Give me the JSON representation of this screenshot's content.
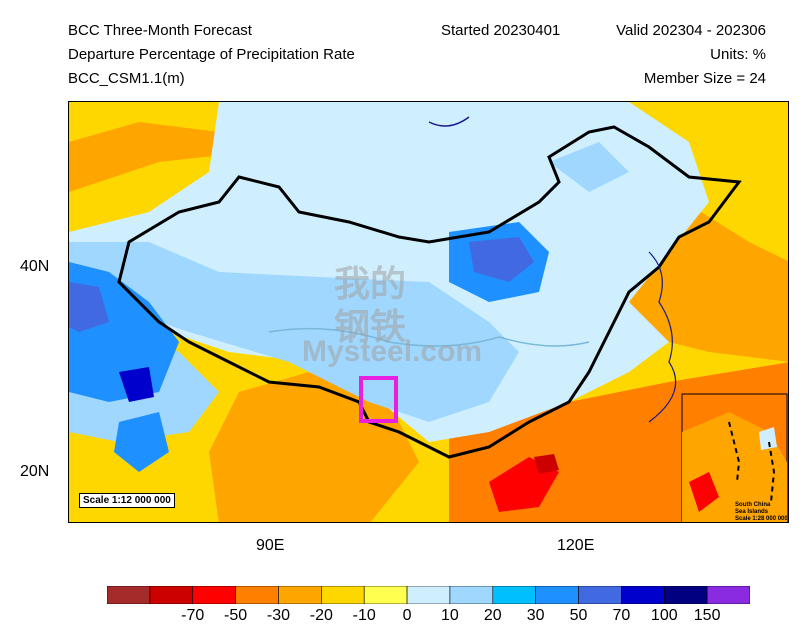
{
  "header": {
    "title": "BCC Three-Month Forecast",
    "subtitle": "Departure Percentage of Precipitation Rate",
    "model": "BCC_CSM1.1(m)",
    "started": "Started 20230401",
    "valid": "Valid 202304 - 202306",
    "units": "Units: %",
    "member_size": "Member Size = 24"
  },
  "map": {
    "lat_labels": [
      "40N",
      "20N"
    ],
    "lon_labels": [
      "90E",
      "120E"
    ],
    "scale_note": "Scale 1:12 000 000",
    "inset_title_1": "South China",
    "inset_title_2": "Sea Islands",
    "inset_scale": "Scale 1:28 000 000",
    "highlight_color": "#e81ee0"
  },
  "watermark": {
    "cn_line1": "我的",
    "cn_line2": "钢铁",
    "en": "Mysteel.com"
  },
  "colorbar": {
    "colors": [
      "#a52a2a",
      "#cd0000",
      "#ff0000",
      "#ff7f00",
      "#ffa500",
      "#ffd700",
      "#ffff50",
      "#cfefff",
      "#9fd7ff",
      "#00bfff",
      "#1e90ff",
      "#4169e1",
      "#0000cd",
      "#000080",
      "#8a2be2"
    ],
    "labels": [
      "-70",
      "-50",
      "-30",
      "-20",
      "-10",
      "0",
      "10",
      "20",
      "30",
      "50",
      "70",
      "100",
      "150"
    ]
  }
}
